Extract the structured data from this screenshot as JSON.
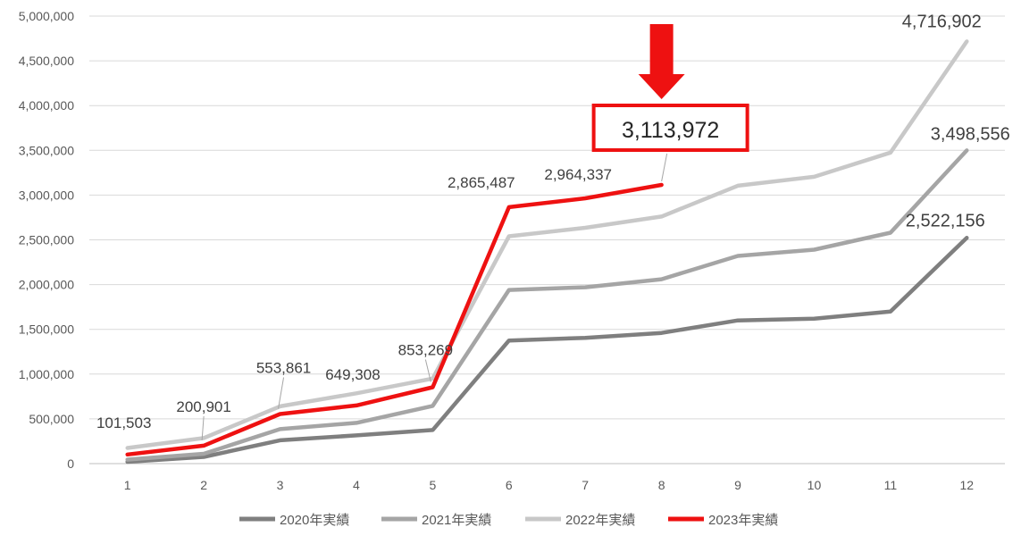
{
  "chart_data": {
    "type": "line",
    "title": "",
    "xlabel": "",
    "ylabel": "",
    "ylim": [
      0,
      5000000
    ],
    "yticks": [
      "0",
      "500,000",
      "1,000,000",
      "1,500,000",
      "2,000,000",
      "2,500,000",
      "3,000,000",
      "3,500,000",
      "4,000,000",
      "4,500,000",
      "5,000,000"
    ],
    "categories": [
      "1",
      "2",
      "3",
      "4",
      "5",
      "6",
      "7",
      "8",
      "9",
      "10",
      "11",
      "12"
    ],
    "grid": true,
    "legend_position": "bottom",
    "series": [
      {
        "name": "2020年実績",
        "color": "#7f7f7f",
        "values": [
          20000,
          75000,
          260000,
          315000,
          375000,
          1375000,
          1405000,
          1460000,
          1600000,
          1620000,
          1700000,
          2522156
        ]
      },
      {
        "name": "2021年実績",
        "color": "#a5a5a5",
        "values": [
          45000,
          110000,
          385000,
          455000,
          645000,
          1940000,
          1970000,
          2060000,
          2320000,
          2390000,
          2580000,
          3498556
        ]
      },
      {
        "name": "2022年実績",
        "color": "#c8c8c8",
        "values": [
          175000,
          285000,
          640000,
          785000,
          950000,
          2540000,
          2635000,
          2760000,
          3105000,
          3205000,
          3475000,
          4716902
        ]
      },
      {
        "name": "2023年実績",
        "color": "#ee1111",
        "values": [
          101503,
          200901,
          553861,
          649308,
          853269,
          2865487,
          2964337,
          3113972,
          null,
          null,
          null,
          null
        ]
      }
    ],
    "data_labels": [
      {
        "text": "101,503",
        "x": "1"
      },
      {
        "text": "200,901",
        "x": "2"
      },
      {
        "text": "553,861",
        "x": "3"
      },
      {
        "text": "649,308",
        "x": "4"
      },
      {
        "text": "853,269",
        "x": "5"
      },
      {
        "text": "2,865,487",
        "x": "6"
      },
      {
        "text": "2,964,337",
        "x": "7"
      }
    ],
    "end_labels": [
      {
        "text": "4,716,902",
        "series": "2022年実績"
      },
      {
        "text": "3,498,556",
        "series": "2021年実績"
      },
      {
        "text": "2,522,156",
        "series": "2020年実績"
      }
    ],
    "callout": {
      "text": "3,113,972",
      "x": "8",
      "color": "#ee1111"
    }
  }
}
